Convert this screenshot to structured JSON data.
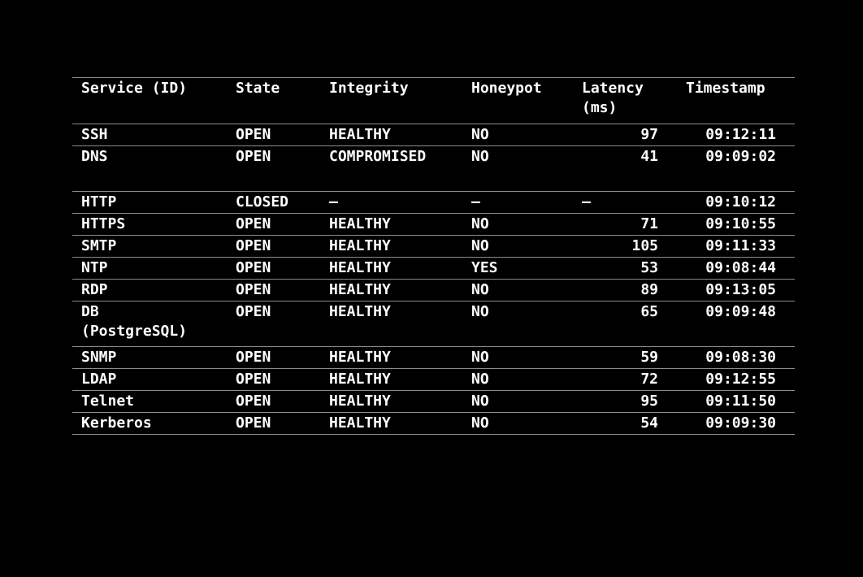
{
  "table": {
    "headers": {
      "service": "Service (ID)",
      "state": "State",
      "integrity": "Integrity",
      "honeypot": "Honeypot",
      "latency": "Latency\n(ms)",
      "timestamp": "Timestamp"
    },
    "rows": [
      {
        "service": "SSH",
        "state": "OPEN",
        "integrity": "HEALTHY",
        "honeypot": "NO",
        "latency": "97",
        "timestamp": "09:12:11"
      },
      {
        "service": "DNS",
        "state": "OPEN",
        "integrity": "COMPROMISED",
        "honeypot": "NO",
        "latency": "41",
        "timestamp": "09:09:02"
      },
      {
        "service": "HTTP",
        "state": "CLOSED",
        "integrity": "—",
        "honeypot": "—",
        "latency": "—",
        "timestamp": "09:10:12"
      },
      {
        "service": "HTTPS",
        "state": "OPEN",
        "integrity": "HEALTHY",
        "honeypot": "NO",
        "latency": "71",
        "timestamp": "09:10:55"
      },
      {
        "service": "SMTP",
        "state": "OPEN",
        "integrity": "HEALTHY",
        "honeypot": "NO",
        "latency": "105",
        "timestamp": "09:11:33"
      },
      {
        "service": "NTP",
        "state": "OPEN",
        "integrity": "HEALTHY",
        "honeypot": "YES",
        "latency": "53",
        "timestamp": "09:08:44"
      },
      {
        "service": "RDP",
        "state": "OPEN",
        "integrity": "HEALTHY",
        "honeypot": "NO",
        "latency": "89",
        "timestamp": "09:13:05"
      },
      {
        "service": "DB\n(PostgreSQL)",
        "state": "OPEN",
        "integrity": "HEALTHY",
        "honeypot": "NO",
        "latency": "65",
        "timestamp": "09:09:48"
      },
      {
        "service": "SNMP",
        "state": "OPEN",
        "integrity": "HEALTHY",
        "honeypot": "NO",
        "latency": "59",
        "timestamp": "09:08:30"
      },
      {
        "service": "LDAP",
        "state": "OPEN",
        "integrity": "HEALTHY",
        "honeypot": "NO",
        "latency": "72",
        "timestamp": "09:12:55"
      },
      {
        "service": "Telnet",
        "state": "OPEN",
        "integrity": "HEALTHY",
        "honeypot": "NO",
        "latency": "95",
        "timestamp": "09:11:50"
      },
      {
        "service": "Kerberos",
        "state": "OPEN",
        "integrity": "HEALTHY",
        "honeypot": "NO",
        "latency": "54",
        "timestamp": "09:09:30"
      }
    ]
  }
}
